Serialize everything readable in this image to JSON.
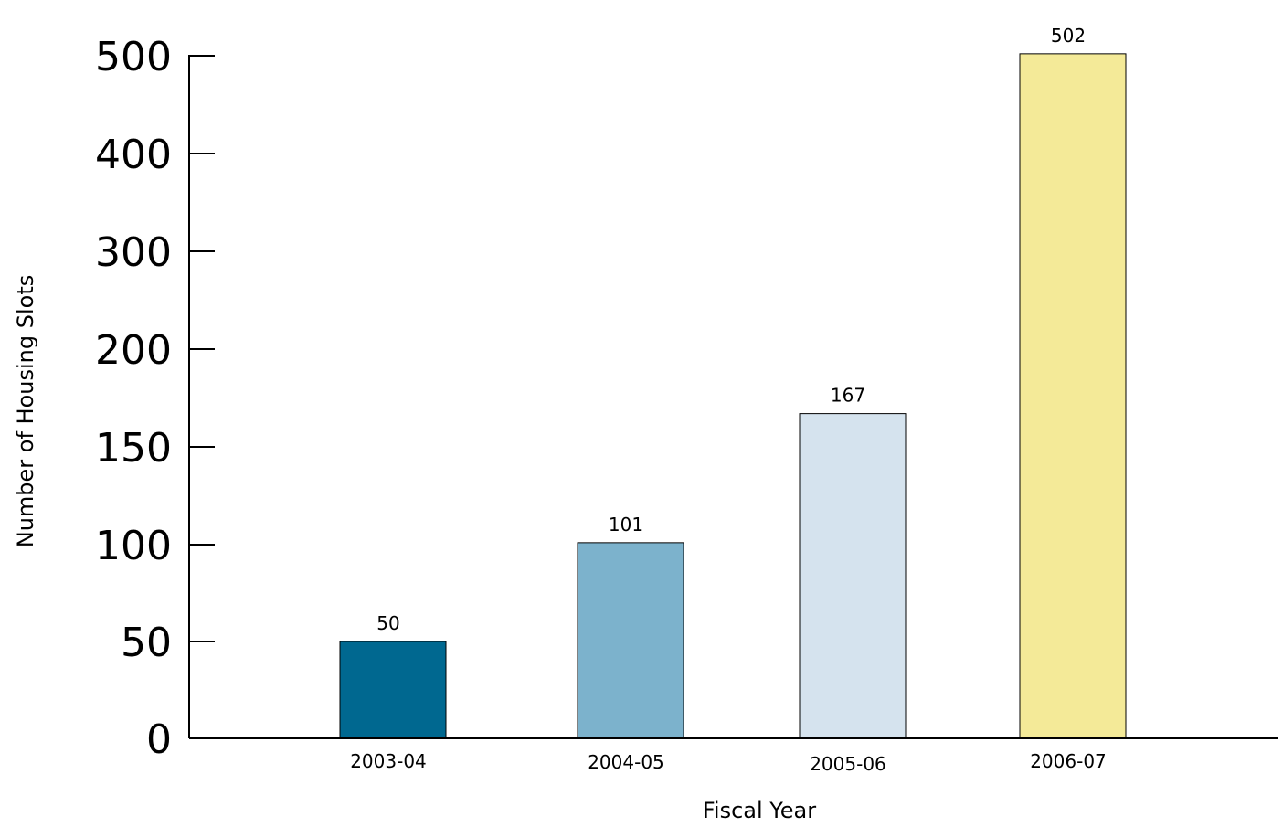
{
  "chart_data": {
    "type": "bar",
    "title": "",
    "xlabel": "Fiscal Year",
    "ylabel": "Number of Housing Slots",
    "categories": [
      "2003-04",
      "2004-05",
      "2005-06",
      "2006-07"
    ],
    "values": [
      50,
      101,
      167,
      502
    ],
    "data_labels": [
      "50",
      "101",
      "167",
      "502"
    ],
    "colors": [
      "#006890",
      "#7cb2cc",
      "#d5e3ee",
      "#f4ea98"
    ],
    "y_ticks": [
      0,
      50,
      100,
      150,
      200,
      300,
      400,
      500
    ],
    "y_tick_labels": [
      "0",
      "50",
      "100",
      "150",
      "200",
      "300",
      "400",
      "500"
    ],
    "y_scale": "non-uniform (equal spacing between listed ticks)",
    "grid": false,
    "legend": "none"
  }
}
